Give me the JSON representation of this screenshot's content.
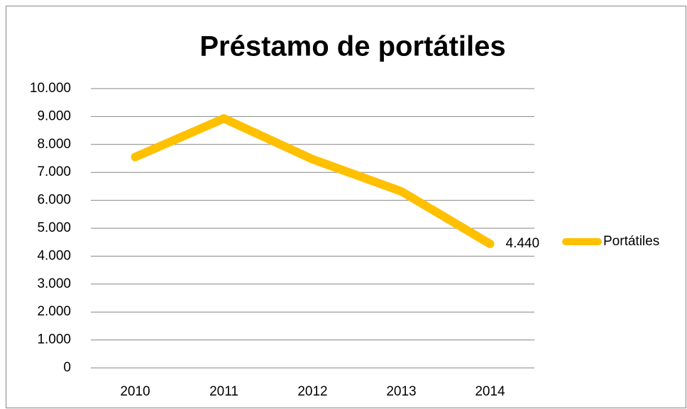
{
  "chart_data": {
    "type": "line",
    "title": "Préstamo de portátiles",
    "categories": [
      "2010",
      "2011",
      "2012",
      "2013",
      "2014"
    ],
    "series": [
      {
        "name": "Portátiles",
        "color": "#ffc000",
        "values": [
          7550,
          8930,
          7470,
          6320,
          4440
        ],
        "value_labels": [
          null,
          null,
          null,
          null,
          "4.440"
        ]
      }
    ],
    "ylim": [
      0,
      10000
    ],
    "yticks": [
      0,
      {
        "value": 1000,
        "label": "1.000"
      },
      {
        "value": 2000,
        "label": "2.000"
      },
      {
        "value": 3000,
        "label": "3.000"
      },
      {
        "value": 4000,
        "label": "4.000"
      },
      {
        "value": 5000,
        "label": "5.000"
      },
      {
        "value": 6000,
        "label": "6.000"
      },
      {
        "value": 7000,
        "label": "7.000"
      },
      {
        "value": 8000,
        "label": "8.000"
      },
      {
        "value": 9000,
        "label": "9.000"
      },
      {
        "value": 10000,
        "label": "10.000"
      }
    ],
    "grid": true,
    "legend": "right"
  }
}
